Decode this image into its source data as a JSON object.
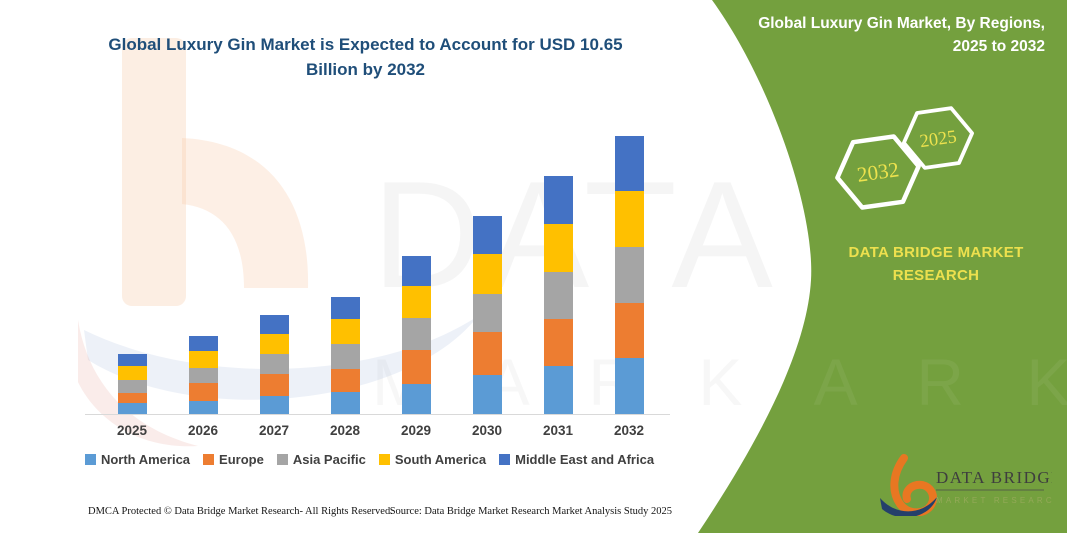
{
  "page": {
    "background": "#ffffff",
    "accent_green": "#74A03E",
    "axis_line_color": "#d9d9d9"
  },
  "title": {
    "lines": [
      "Global Luxury Gin Market is Expected to Account for USD 10.65",
      "Billion by 2032"
    ],
    "full_text": "Global Luxury Gin Market is Expected to Account for USD 10.65 Billion by 2032",
    "color": "#1F4E79"
  },
  "right_panel": {
    "header_lines": [
      "Global Luxury Gin Market, By Regions,",
      "2025 to 2032"
    ],
    "hexagons": [
      {
        "label": "2032"
      },
      {
        "label": "2025"
      }
    ],
    "hexagon_label_color": "#EDE24E",
    "brand_lines": [
      "DATA BRIDGE MARKET",
      "RESEARCH"
    ],
    "brand_color": "#EDE04E",
    "logo": {
      "name": "DATA BRIDGE",
      "sub": "MARKET RESEARCH",
      "b_orange": "#E87722",
      "b_navy": "#24406B"
    }
  },
  "watermarks": {
    "big_text": "DATA BRI",
    "letters": "M A R K E T  R E S E A R C H"
  },
  "footer": {
    "dmca": "DMCA Protected © Data Bridge Market Research-  All Rights Reserved.",
    "source": "Source: Data Bridge Market Research  Market Analysis Study 2025"
  },
  "chart_data": {
    "type": "bar",
    "stacked": true,
    "title": "Global Luxury Gin Market, By Regions, 2025 to 2032",
    "unit": "USD Billion",
    "categories": [
      "2025",
      "2026",
      "2027",
      "2028",
      "2029",
      "2030",
      "2031",
      "2032"
    ],
    "series": [
      {
        "name": "North America",
        "color": "#5B9BD5",
        "values": [
          0.42,
          0.5,
          0.69,
          0.84,
          1.15,
          1.49,
          1.84,
          2.15
        ]
      },
      {
        "name": "Europe",
        "color": "#ED7D31",
        "values": [
          0.38,
          0.69,
          0.84,
          0.88,
          1.3,
          1.65,
          1.8,
          2.11
        ]
      },
      {
        "name": "Asia Pacific",
        "color": "#A5A5A5",
        "values": [
          0.5,
          0.57,
          0.77,
          0.96,
          1.23,
          1.46,
          1.8,
          2.14
        ]
      },
      {
        "name": "South America",
        "color": "#FFC000",
        "values": [
          0.54,
          0.65,
          0.77,
          0.96,
          1.23,
          1.53,
          1.84,
          2.14
        ]
      },
      {
        "name": "Middle East and Africa",
        "color": "#4472C4",
        "values": [
          0.46,
          0.57,
          0.73,
          0.84,
          1.15,
          1.46,
          1.84,
          2.11
        ]
      }
    ],
    "totals": [
      2.3,
      2.98,
      3.8,
      4.48,
      6.06,
      7.59,
      9.12,
      10.65
    ],
    "annotation": "Expected to account for USD 10.65 Billion by 2032",
    "ylim": [
      0,
      11
    ],
    "grid": false,
    "y_axis_visible": false,
    "legend_position": "bottom"
  }
}
